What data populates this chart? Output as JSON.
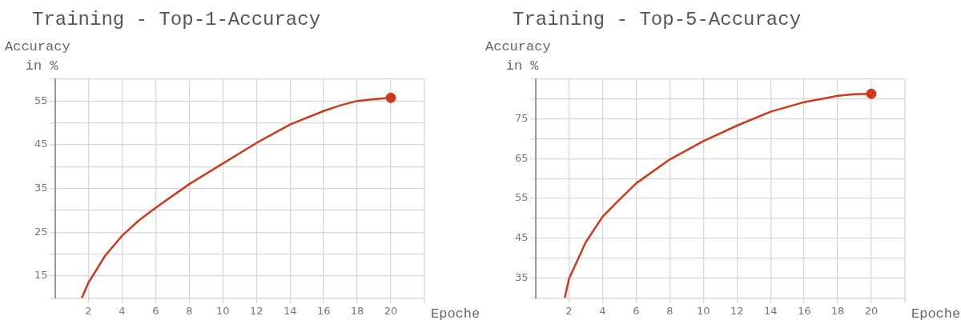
{
  "chart_data": [
    {
      "type": "line",
      "title": "Training - Top-1-Accuracy",
      "xlabel": "Epoche",
      "ylabel": "Accuracy in %",
      "xlim": [
        0,
        22
      ],
      "xticks": [
        2,
        4,
        6,
        8,
        10,
        12,
        14,
        16,
        18,
        20
      ],
      "ylim": [
        10,
        60
      ],
      "yticks": [
        {
          "value": 10,
          "label": null
        },
        15,
        {
          "value": 20,
          "label": null
        },
        25,
        {
          "value": 30,
          "label": null
        },
        35,
        {
          "value": 40,
          "label": null
        },
        45,
        {
          "value": 50,
          "label": null
        },
        55,
        {
          "value": 60,
          "label": null
        }
      ],
      "grid": true,
      "legend": false,
      "marker": "none",
      "series": [
        {
          "color": "#d03a1c",
          "x": [
            1.6,
            2,
            3,
            4,
            5,
            6,
            8,
            10,
            12,
            14,
            16,
            17,
            18,
            19,
            20
          ],
          "values": [
            10,
            13.5,
            19.7,
            24.2,
            27.7,
            30.6,
            36,
            40.7,
            45.4,
            49.6,
            52.7,
            54,
            55,
            55.4,
            55.7
          ]
        },
        {
          "type": "scatter",
          "marker": "circle",
          "color": "#d03a1c",
          "x": [
            20
          ],
          "values": [
            55.7
          ]
        }
      ]
    },
    {
      "type": "line",
      "title": "Training - Top-5-Accuracy",
      "xlabel": "Epoche",
      "ylabel": "Accuracy in %",
      "xlim": [
        0,
        22
      ],
      "xticks": [
        2,
        4,
        6,
        8,
        10,
        12,
        14,
        16,
        18,
        20
      ],
      "ylim": [
        30,
        85
      ],
      "yticks": [
        {
          "value": 30,
          "label": null
        },
        35,
        {
          "value": 40,
          "label": null
        },
        45,
        {
          "value": 50,
          "label": null
        },
        55,
        {
          "value": 60,
          "label": null
        },
        65,
        {
          "value": 70,
          "label": null
        },
        75,
        {
          "value": 80,
          "label": null
        },
        {
          "value": 85,
          "label": null
        }
      ],
      "grid": true,
      "legend": false,
      "marker": "none",
      "series": [
        {
          "color": "#d03a1c",
          "x": [
            1.75,
            2,
            3,
            4,
            5,
            6,
            8,
            10,
            12,
            14,
            16,
            17,
            18,
            19,
            20
          ],
          "values": [
            30,
            34.8,
            44,
            50.4,
            54.7,
            58.8,
            64.8,
            69.4,
            73.3,
            76.8,
            79.2,
            80,
            80.8,
            81.2,
            81.3
          ]
        },
        {
          "type": "scatter",
          "marker": "circle",
          "color": "#d03a1c",
          "x": [
            20
          ],
          "values": [
            81.3
          ]
        }
      ]
    }
  ]
}
